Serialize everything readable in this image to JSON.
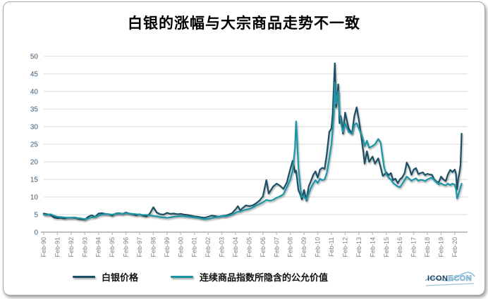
{
  "title": "白银的涨幅与大宗商品走势不一致",
  "logo": {
    "part1": "ICON",
    "part2": "ECON"
  },
  "colors": {
    "series_silver": "#1c4f63",
    "series_fair_value": "#1b95a4",
    "gridline": "#d9d9d9",
    "axis_line": "#bfbfbf",
    "y_tick_label": "#3a5a77",
    "x_tick_label": "#808080",
    "title_text": "#000000"
  },
  "chart_data": {
    "type": "line",
    "title": "白银的涨幅与大宗商品走势不一致",
    "xlabel": "",
    "ylabel": "",
    "grid": "horizontal",
    "legend_position": "bottom",
    "y_axis": {
      "min": 0,
      "max": 50,
      "step": 5,
      "tick_labels": [
        "0",
        "5",
        "10",
        "15",
        "20",
        "25",
        "30",
        "35",
        "40",
        "45",
        "50"
      ]
    },
    "x_axis": {
      "first_tick_year": 1990.083,
      "ticks_every_years": 1,
      "tick_labels": [
        "Feb-90",
        "Feb-91",
        "Feb-92",
        "Feb-93",
        "Feb-94",
        "Feb-95",
        "Feb-96",
        "Feb-97",
        "Feb-98",
        "Feb-99",
        "Feb-00",
        "Feb-01",
        "Feb-02",
        "Feb-03",
        "Feb-04",
        "Feb-05",
        "Feb-06",
        "Feb-07",
        "Feb-08",
        "Feb-09",
        "Feb-10",
        "Feb-11",
        "Feb-12",
        "Feb-13",
        "Feb-14",
        "Feb-15",
        "Feb-16",
        "Feb-17",
        "Feb-18",
        "Feb-19",
        "Feb-20"
      ]
    },
    "x": [
      1990.08,
      1990.33,
      1990.58,
      1990.83,
      1991.08,
      1991.33,
      1991.58,
      1991.83,
      1992.08,
      1992.33,
      1992.58,
      1992.83,
      1993.08,
      1993.33,
      1993.58,
      1993.83,
      1994.08,
      1994.33,
      1994.58,
      1994.83,
      1995.08,
      1995.33,
      1995.58,
      1995.83,
      1996.08,
      1996.33,
      1996.58,
      1996.83,
      1997.08,
      1997.33,
      1997.58,
      1997.83,
      1998.08,
      1998.33,
      1998.58,
      1998.83,
      1999.08,
      1999.33,
      1999.58,
      1999.83,
      2000.08,
      2000.33,
      2000.58,
      2000.83,
      2001.08,
      2001.33,
      2001.58,
      2001.83,
      2002.08,
      2002.33,
      2002.58,
      2002.83,
      2003.08,
      2003.33,
      2003.58,
      2003.83,
      2004.08,
      2004.25,
      2004.42,
      2004.58,
      2004.83,
      2005.08,
      2005.33,
      2005.58,
      2005.83,
      2006.08,
      2006.33,
      2006.5,
      2006.67,
      2006.83,
      2007.08,
      2007.33,
      2007.58,
      2007.83,
      2008.08,
      2008.25,
      2008.42,
      2008.5,
      2008.58,
      2008.67,
      2008.83,
      2008.92,
      2009.08,
      2009.25,
      2009.42,
      2009.58,
      2009.75,
      2009.92,
      2010.08,
      2010.25,
      2010.42,
      2010.58,
      2010.75,
      2010.92,
      2011.08,
      2011.17,
      2011.25,
      2011.33,
      2011.42,
      2011.5,
      2011.58,
      2011.67,
      2011.75,
      2011.83,
      2011.92,
      2012.08,
      2012.33,
      2012.58,
      2012.75,
      2012.92,
      2013.08,
      2013.25,
      2013.42,
      2013.5,
      2013.67,
      2013.83,
      2014.08,
      2014.25,
      2014.5,
      2014.67,
      2014.83,
      2014.92,
      2015.08,
      2015.25,
      2015.42,
      2015.58,
      2015.75,
      2015.92,
      2016.08,
      2016.25,
      2016.42,
      2016.58,
      2016.75,
      2016.92,
      2017.08,
      2017.25,
      2017.42,
      2017.58,
      2017.75,
      2017.92,
      2018.08,
      2018.25,
      2018.42,
      2018.58,
      2018.75,
      2018.92,
      2019.08,
      2019.25,
      2019.42,
      2019.58,
      2019.75,
      2019.92,
      2020.08,
      2020.17,
      2020.25,
      2020.33,
      2020.42,
      2020.5,
      2020.58
    ],
    "series": [
      {
        "name": "白银价格",
        "color": "#1c4f63",
        "values": [
          5.3,
          5.1,
          4.9,
          4.2,
          4.0,
          4.1,
          3.9,
          4.1,
          4.1,
          4.1,
          3.8,
          3.7,
          3.6,
          4.4,
          4.8,
          4.4,
          5.3,
          5.4,
          5.2,
          5.1,
          4.7,
          5.3,
          5.4,
          5.2,
          5.6,
          5.3,
          5.1,
          4.8,
          5.1,
          4.7,
          4.5,
          5.3,
          7.1,
          5.6,
          5.1,
          5.0,
          5.5,
          5.2,
          5.3,
          5.1,
          5.2,
          5.0,
          4.9,
          4.7,
          4.5,
          4.4,
          4.2,
          4.1,
          4.4,
          4.7,
          4.6,
          4.4,
          4.6,
          4.7,
          5.0,
          5.4,
          6.5,
          7.4,
          6.2,
          6.8,
          7.6,
          7.4,
          7.6,
          8.2,
          9.0,
          10.2,
          14.8,
          11.0,
          12.0,
          13.0,
          13.8,
          13.2,
          12.3,
          14.2,
          18.0,
          20.3,
          17.0,
          17.5,
          15.0,
          12.0,
          10.5,
          9.3,
          12.0,
          9.0,
          13.0,
          14.5,
          16.3,
          17.3,
          15.5,
          17.8,
          18.3,
          18.0,
          22.5,
          28.5,
          29.5,
          33.5,
          41.0,
          48.0,
          35.5,
          38.5,
          42.0,
          31.0,
          33.0,
          31.5,
          28.0,
          34.0,
          29.5,
          28.0,
          33.0,
          35.5,
          32.0,
          27.5,
          22.5,
          19.5,
          23.0,
          20.0,
          21.5,
          19.5,
          21.0,
          18.5,
          16.0,
          16.3,
          17.0,
          16.2,
          16.8,
          14.8,
          15.2,
          13.9,
          15.0,
          15.6,
          16.8,
          19.8,
          18.5,
          16.3,
          17.8,
          18.2,
          16.5,
          16.8,
          17.0,
          16.2,
          16.6,
          16.4,
          16.3,
          15.0,
          14.4,
          14.2,
          15.8,
          15.0,
          14.5,
          16.4,
          17.7,
          17.1,
          17.8,
          16.6,
          12.2,
          15.0,
          16.8,
          19.0,
          28.0
        ]
      },
      {
        "name": "连续商品指数所隐含的公允价值",
        "color": "#1b95a4",
        "values": [
          5.0,
          4.9,
          5.1,
          4.7,
          4.4,
          4.3,
          4.2,
          4.1,
          4.1,
          4.2,
          4.0,
          3.9,
          3.7,
          3.9,
          4.2,
          4.3,
          4.7,
          5.0,
          5.2,
          5.1,
          5.0,
          5.2,
          5.3,
          5.2,
          5.4,
          5.3,
          5.2,
          5.1,
          5.0,
          4.9,
          4.9,
          4.8,
          4.6,
          4.5,
          4.3,
          4.2,
          4.1,
          4.2,
          4.4,
          4.5,
          4.6,
          4.5,
          4.4,
          4.3,
          4.2,
          4.1,
          3.9,
          3.7,
          3.8,
          4.0,
          4.2,
          4.4,
          4.6,
          4.5,
          4.7,
          5.0,
          5.5,
          5.8,
          5.9,
          6.1,
          6.4,
          6.6,
          7.0,
          7.6,
          8.0,
          8.5,
          9.2,
          9.0,
          9.0,
          9.2,
          9.8,
          10.2,
          10.8,
          12.8,
          15.0,
          17.5,
          24.0,
          31.5,
          26.0,
          18.5,
          12.0,
          10.0,
          10.3,
          9.2,
          11.0,
          12.5,
          13.8,
          14.8,
          14.0,
          15.2,
          14.8,
          15.0,
          17.0,
          21.0,
          25.0,
          29.0,
          34.0,
          42.5,
          36.5,
          38.5,
          40.0,
          33.5,
          32.0,
          30.0,
          28.5,
          31.0,
          28.5,
          28.0,
          30.5,
          31.0,
          29.5,
          28.0,
          26.0,
          24.5,
          26.0,
          24.0,
          24.5,
          25.0,
          26.5,
          25.5,
          21.0,
          18.5,
          16.5,
          15.5,
          15.0,
          14.0,
          13.5,
          13.0,
          12.8,
          13.8,
          14.8,
          15.8,
          15.2,
          14.6,
          15.0,
          15.3,
          14.6,
          14.9,
          14.8,
          14.5,
          15.0,
          15.3,
          15.5,
          14.8,
          14.2,
          13.6,
          13.9,
          13.5,
          13.3,
          13.8,
          13.4,
          13.8,
          13.5,
          12.2,
          9.6,
          10.6,
          11.6,
          12.8,
          13.8
        ]
      }
    ]
  }
}
